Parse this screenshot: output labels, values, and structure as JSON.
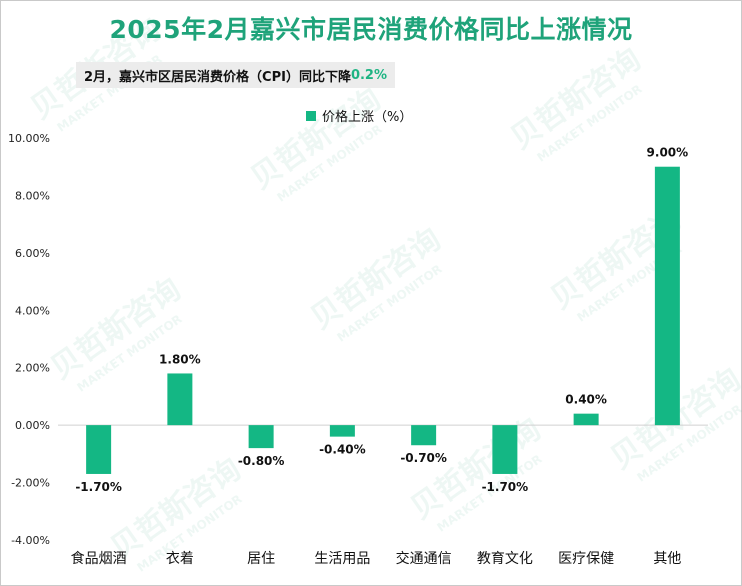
{
  "header": {
    "title": "2025年2月嘉兴市居民消费价格同比上涨情况",
    "subtitle_prefix": "2月，嘉兴市区居民消费价格（CPI）同比下降",
    "subtitle_value": "0.2%"
  },
  "watermark": {
    "cn": "贝哲斯咨询",
    "en": "MARKET MONITOR"
  },
  "colors": {
    "bar": "#14b784",
    "title": "#1fa37a",
    "highlight": "#1fb483"
  },
  "chart_data": {
    "type": "bar",
    "title": "2025年2月嘉兴市居民消费价格同比上涨情况",
    "categories": [
      "食品烟酒",
      "衣着",
      "居住",
      "生活用品",
      "交通通信",
      "教育文化",
      "医疗保健",
      "其他"
    ],
    "series": [
      {
        "name": "价格上涨（%）",
        "values": [
          -1.7,
          1.8,
          -0.8,
          -0.4,
          -0.7,
          -1.7,
          0.4,
          9.0
        ],
        "labels": [
          "-1.70%",
          "1.80%",
          "-0.80%",
          "-0.40%",
          "-0.70%",
          "-1.70%",
          "0.40%",
          "9.00%"
        ]
      }
    ],
    "yticks": [
      "10.00%",
      "8.00%",
      "6.00%",
      "4.00%",
      "2.00%",
      "0.00%",
      "-2.00%",
      "-4.00%"
    ],
    "ylim": [
      -4,
      10
    ],
    "legend": "top-center",
    "grid": false
  }
}
